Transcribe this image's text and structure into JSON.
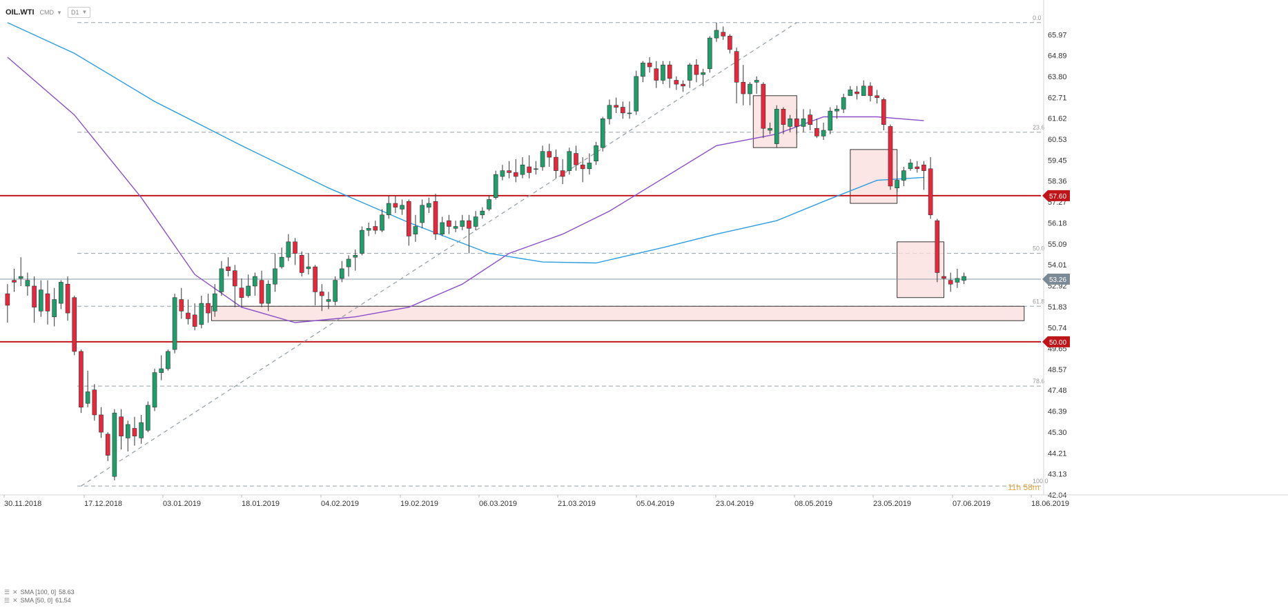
{
  "toolbar": {
    "symbol": "OIL.WTI",
    "type": "CMD",
    "timeframe": "D1"
  },
  "price_tags": {
    "current": "53.26",
    "upper": "57.60",
    "lower": "50.00"
  },
  "countdown": "11h 58m",
  "colors": {
    "up": "#1f9e6b",
    "down": "#e8273c",
    "sma50": "#8a4fc9",
    "sma100": "#2c9de0",
    "hline": "#c0141b",
    "box": "#fadcdc",
    "fib": "#98a2a8"
  },
  "chart_data": {
    "type": "candlestick",
    "ylim": [
      42.04,
      66.7
    ],
    "y_ticks": [
      "65.97",
      "64.89",
      "63.80",
      "62.71",
      "61.62",
      "60.53",
      "59.45",
      "58.36",
      "57.27",
      "56.18",
      "55.09",
      "54.01",
      "52.92",
      "51.83",
      "50.74",
      "49.65",
      "48.57",
      "47.48",
      "46.39",
      "45.30",
      "44.21",
      "43.13",
      "42.04"
    ],
    "x_ticks": [
      "30.11.2018",
      "17.12.2018",
      "03.01.2019",
      "18.01.2019",
      "04.02.2019",
      "19.02.2019",
      "06.03.2019",
      "21.03.2019",
      "05.04.2019",
      "23.04.2019",
      "08.05.2019",
      "23.05.2019",
      "07.06.2019",
      "18.06.2019"
    ],
    "fib_levels": [
      {
        "label": "0.0",
        "price": 66.6
      },
      {
        "label": "23.6",
        "price": 60.9
      },
      {
        "label": "50.0",
        "price": 54.6
      },
      {
        "label": "61.8",
        "price": 51.85
      },
      {
        "label": "78.6",
        "price": 47.7
      },
      {
        "label": "100.0",
        "price": 42.5
      }
    ],
    "horizontal_levels": [
      57.6,
      50.0
    ],
    "current_price": 53.26,
    "zones": [
      {
        "x0": 30.5,
        "x1": 152.0,
        "y0": 51.1,
        "y1": 51.85
      },
      {
        "x0": 111.5,
        "x1": 118.0,
        "y0": 60.1,
        "y1": 62.8
      },
      {
        "x0": 126.0,
        "x1": 133.0,
        "y0": 57.2,
        "y1": 60.0
      },
      {
        "x0": 133.0,
        "x1": 140.0,
        "y0": 52.3,
        "y1": 55.2
      }
    ],
    "trendline": {
      "from": [
        11.0,
        42.5
      ],
      "to": [
        118.0,
        66.6
      ]
    },
    "sma50": {
      "name": "SMA [50, 0]",
      "value": "61.54",
      "points": [
        [
          0,
          64.8
        ],
        [
          10,
          61.8
        ],
        [
          20,
          57.5
        ],
        [
          28,
          53.5
        ],
        [
          35,
          51.8
        ],
        [
          43,
          51.0
        ],
        [
          52,
          51.3
        ],
        [
          60,
          51.8
        ],
        [
          68,
          53.0
        ],
        [
          75,
          54.6
        ],
        [
          83,
          55.6
        ],
        [
          90,
          56.8
        ],
        [
          98,
          58.5
        ],
        [
          106,
          60.2
        ],
        [
          115,
          60.8
        ],
        [
          122,
          61.7
        ],
        [
          130,
          61.7
        ],
        [
          137,
          61.5
        ]
      ]
    },
    "sma100": {
      "name": "SMA [100, 0]",
      "value": "58.63",
      "points": [
        [
          0,
          66.6
        ],
        [
          10,
          65.0
        ],
        [
          22,
          62.5
        ],
        [
          35,
          60.2
        ],
        [
          48,
          58.0
        ],
        [
          60,
          56.2
        ],
        [
          72,
          54.6
        ],
        [
          80,
          54.15
        ],
        [
          88,
          54.1
        ],
        [
          98,
          54.9
        ],
        [
          106,
          55.6
        ],
        [
          115,
          56.3
        ],
        [
          122,
          57.3
        ],
        [
          130,
          58.4
        ],
        [
          137,
          58.55
        ]
      ]
    },
    "candles": [
      [
        52.5,
        51.9,
        53.0,
        51.0
      ],
      [
        53.2,
        53.1,
        53.8,
        52.6
      ],
      [
        53.3,
        53.4,
        54.4,
        52.9
      ],
      [
        52.9,
        53.2,
        53.6,
        52.4
      ],
      [
        52.9,
        51.8,
        53.4,
        51.0
      ],
      [
        51.6,
        52.7,
        53.2,
        51.3
      ],
      [
        52.5,
        51.6,
        53.2,
        50.9
      ],
      [
        51.3,
        52.2,
        52.8,
        50.8
      ],
      [
        52.0,
        53.1,
        53.2,
        51.7
      ],
      [
        53.0,
        51.5,
        53.4,
        51.1
      ],
      [
        52.3,
        49.5,
        52.4,
        49.3
      ],
      [
        49.5,
        46.6,
        49.6,
        46.3
      ],
      [
        46.8,
        47.4,
        48.5,
        46.6
      ],
      [
        47.5,
        46.2,
        47.8,
        45.9
      ],
      [
        46.2,
        45.3,
        46.6,
        45.0
      ],
      [
        45.2,
        44.1,
        45.3,
        43.8
      ],
      [
        43.0,
        46.3,
        46.5,
        42.8
      ],
      [
        46.1,
        45.1,
        46.5,
        44.4
      ],
      [
        45.0,
        45.7,
        45.9,
        44.3
      ],
      [
        45.5,
        45.1,
        46.1,
        44.6
      ],
      [
        45.0,
        45.8,
        46.2,
        44.7
      ],
      [
        45.4,
        46.7,
        46.9,
        45.3
      ],
      [
        46.6,
        48.4,
        48.6,
        46.4
      ],
      [
        48.4,
        48.6,
        49.3,
        48.0
      ],
      [
        48.6,
        49.5,
        49.6,
        48.5
      ],
      [
        49.6,
        52.3,
        52.5,
        49.4
      ],
      [
        52.2,
        51.6,
        52.8,
        51.2
      ],
      [
        51.5,
        51.2,
        52.2,
        50.9
      ],
      [
        51.4,
        50.8,
        52.0,
        50.6
      ],
      [
        50.9,
        52.0,
        52.4,
        50.7
      ],
      [
        52.0,
        51.5,
        52.5,
        51.0
      ],
      [
        51.6,
        52.5,
        53.0,
        51.3
      ],
      [
        52.6,
        53.8,
        54.2,
        52.4
      ],
      [
        53.9,
        53.7,
        54.4,
        53.4
      ],
      [
        53.7,
        52.9,
        54.0,
        51.8
      ],
      [
        52.8,
        52.3,
        53.3,
        51.8
      ],
      [
        52.4,
        52.9,
        53.5,
        52.3
      ],
      [
        52.9,
        53.4,
        53.6,
        52.4
      ],
      [
        53.2,
        52.0,
        53.7,
        51.8
      ],
      [
        52.0,
        53.0,
        53.2,
        51.6
      ],
      [
        53.0,
        53.8,
        54.6,
        52.6
      ],
      [
        53.9,
        54.4,
        54.9,
        53.8
      ],
      [
        54.4,
        55.2,
        55.6,
        54.2
      ],
      [
        55.2,
        54.6,
        55.4,
        54.0
      ],
      [
        54.5,
        53.6,
        54.7,
        53.4
      ],
      [
        53.8,
        53.9,
        54.6,
        53.5
      ],
      [
        53.9,
        52.6,
        54.0,
        51.9
      ],
      [
        52.6,
        52.4,
        53.0,
        51.6
      ],
      [
        52.1,
        52.2,
        52.6,
        51.7
      ],
      [
        52.1,
        53.2,
        53.4,
        51.9
      ],
      [
        53.3,
        53.8,
        54.2,
        53.1
      ],
      [
        53.9,
        54.3,
        54.5,
        53.4
      ],
      [
        54.4,
        54.5,
        54.8,
        53.7
      ],
      [
        54.6,
        55.8,
        56.0,
        54.5
      ],
      [
        55.8,
        55.9,
        56.2,
        55.5
      ],
      [
        56.0,
        55.8,
        56.3,
        55.6
      ],
      [
        55.8,
        56.6,
        56.9,
        55.7
      ],
      [
        56.6,
        57.2,
        57.6,
        56.4
      ],
      [
        57.2,
        57.0,
        57.6,
        56.7
      ],
      [
        56.9,
        57.1,
        57.4,
        56.6
      ],
      [
        57.3,
        55.5,
        57.4,
        55.0
      ],
      [
        55.6,
        56.0,
        56.6,
        55.2
      ],
      [
        56.2,
        57.1,
        57.4,
        55.9
      ],
      [
        57.0,
        57.2,
        57.5,
        56.7
      ],
      [
        57.3,
        55.6,
        57.7,
        55.3
      ],
      [
        55.6,
        56.2,
        56.5,
        55.5
      ],
      [
        56.3,
        56.0,
        56.6,
        55.6
      ],
      [
        55.9,
        56.0,
        56.3,
        55.7
      ],
      [
        56.0,
        56.3,
        56.6,
        55.8
      ],
      [
        56.3,
        55.9,
        56.6,
        54.6
      ],
      [
        56.0,
        56.5,
        56.8,
        55.8
      ],
      [
        56.6,
        56.8,
        57.0,
        56.4
      ],
      [
        56.9,
        57.4,
        57.6,
        56.8
      ],
      [
        57.5,
        58.7,
        58.9,
        57.4
      ],
      [
        58.6,
        58.9,
        59.2,
        58.4
      ],
      [
        58.9,
        58.8,
        59.4,
        58.5
      ],
      [
        58.8,
        58.6,
        59.5,
        58.3
      ],
      [
        58.7,
        59.2,
        59.6,
        58.5
      ],
      [
        59.1,
        58.8,
        59.7,
        58.5
      ],
      [
        59.0,
        59.0,
        59.4,
        58.7
      ],
      [
        59.1,
        59.9,
        60.2,
        58.9
      ],
      [
        59.9,
        59.6,
        60.3,
        59.1
      ],
      [
        59.6,
        58.9,
        60.0,
        58.5
      ],
      [
        58.9,
        58.6,
        59.5,
        58.2
      ],
      [
        58.9,
        59.9,
        60.1,
        58.7
      ],
      [
        59.8,
        59.2,
        60.2,
        58.9
      ],
      [
        59.2,
        59.0,
        59.6,
        58.3
      ],
      [
        59.0,
        59.3,
        59.8,
        58.7
      ],
      [
        59.4,
        60.2,
        60.4,
        59.2
      ],
      [
        60.1,
        61.6,
        61.7,
        59.9
      ],
      [
        61.6,
        62.3,
        62.6,
        61.3
      ],
      [
        62.3,
        62.2,
        62.7,
        61.9
      ],
      [
        62.2,
        61.9,
        62.5,
        61.6
      ],
      [
        61.9,
        61.9,
        62.5,
        61.6
      ],
      [
        62.0,
        63.8,
        64.1,
        61.8
      ],
      [
        63.8,
        64.5,
        64.6,
        63.5
      ],
      [
        64.5,
        64.3,
        64.8,
        64.0
      ],
      [
        64.2,
        63.6,
        64.6,
        63.2
      ],
      [
        63.6,
        64.4,
        64.6,
        63.4
      ],
      [
        64.4,
        63.7,
        64.6,
        63.2
      ],
      [
        63.6,
        63.4,
        63.8,
        63.1
      ],
      [
        63.4,
        63.3,
        63.6,
        63.0
      ],
      [
        63.6,
        64.4,
        64.5,
        63.2
      ],
      [
        64.4,
        63.9,
        64.7,
        63.5
      ],
      [
        63.9,
        64.0,
        64.2,
        63.3
      ],
      [
        64.2,
        65.8,
        65.9,
        64.0
      ],
      [
        65.8,
        66.2,
        66.6,
        65.6
      ],
      [
        66.1,
        65.9,
        66.4,
        65.7
      ],
      [
        65.9,
        65.2,
        66.0,
        65.0
      ],
      [
        65.1,
        63.5,
        65.3,
        62.4
      ],
      [
        63.5,
        62.9,
        64.4,
        62.3
      ],
      [
        62.9,
        63.4,
        63.5,
        62.3
      ],
      [
        63.5,
        63.6,
        63.8,
        62.9
      ],
      [
        63.4,
        61.1,
        63.5,
        60.6
      ],
      [
        61.0,
        61.1,
        61.4,
        60.8
      ],
      [
        60.3,
        62.1,
        62.3,
        60.1
      ],
      [
        62.1,
        61.3,
        62.2,
        60.8
      ],
      [
        61.2,
        61.6,
        61.8,
        60.9
      ],
      [
        61.6,
        61.2,
        62.1,
        60.8
      ],
      [
        61.2,
        61.6,
        62.1,
        60.9
      ],
      [
        61.8,
        61.3,
        62.1,
        61.0
      ],
      [
        61.1,
        60.7,
        61.6,
        60.6
      ],
      [
        60.7,
        61.0,
        61.4,
        60.5
      ],
      [
        61.0,
        62.0,
        62.2,
        60.8
      ],
      [
        62.0,
        62.1,
        62.3,
        61.6
      ],
      [
        62.1,
        62.7,
        62.9,
        61.9
      ],
      [
        62.8,
        63.1,
        63.3,
        62.8
      ],
      [
        63.0,
        62.9,
        63.3,
        62.6
      ],
      [
        62.8,
        63.3,
        63.6,
        62.8
      ],
      [
        63.3,
        62.8,
        63.5,
        62.5
      ],
      [
        62.8,
        62.7,
        63.1,
        62.4
      ],
      [
        62.6,
        61.3,
        62.7,
        61.0
      ],
      [
        61.2,
        58.1,
        61.3,
        57.9
      ],
      [
        58.0,
        58.4,
        58.9,
        57.8
      ],
      [
        58.4,
        58.9,
        59.1,
        58.1
      ],
      [
        59.0,
        59.3,
        59.5,
        58.9
      ],
      [
        59.1,
        59.0,
        59.4,
        58.8
      ],
      [
        59.2,
        58.9,
        59.4,
        57.9
      ],
      [
        59.0,
        56.6,
        59.6,
        56.4
      ],
      [
        56.3,
        53.6,
        56.4,
        53.1
      ],
      [
        53.4,
        53.3,
        53.5,
        52.5
      ],
      [
        53.2,
        53.0,
        53.6,
        52.6
      ],
      [
        53.1,
        53.3,
        53.8,
        52.8
      ],
      [
        53.2,
        53.4,
        53.6,
        53.0
      ]
    ]
  }
}
